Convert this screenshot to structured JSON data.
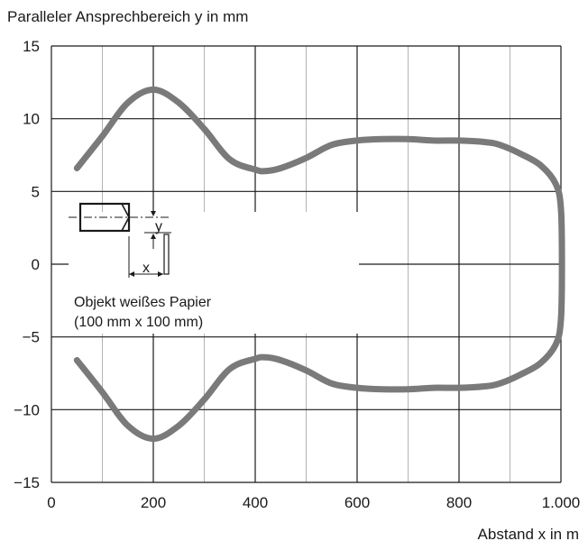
{
  "chart_data": {
    "type": "line",
    "title": "",
    "ylabel": "Paralleler Ansprechbereich y in mm",
    "xlabel": "Abstand x in m",
    "xlim": [
      0,
      1000
    ],
    "ylim": [
      -15,
      15
    ],
    "x_ticks": [
      0,
      200,
      400,
      600,
      800,
      1000
    ],
    "x_tick_labels": [
      "0",
      "200",
      "400",
      "600",
      "800",
      "1.000"
    ],
    "y_ticks": [
      15,
      10,
      5,
      0,
      -5,
      -10,
      -15
    ],
    "y_tick_labels": [
      "15",
      "10",
      "5",
      "0",
      "−5",
      "−10",
      "−15"
    ],
    "grid": true,
    "colors": {
      "curve": "#7a7a7a",
      "major_grid": "#1a1a1a",
      "minor_grid": "#b4b4b4"
    },
    "series": [
      {
        "x": [
          50,
          100,
          150,
          200,
          250,
          300,
          350,
          400,
          420,
          450,
          500,
          550,
          600,
          650,
          700,
          750,
          800,
          850,
          880,
          920,
          960,
          990,
          1000,
          1002,
          1000,
          990,
          960,
          920,
          880,
          850,
          800,
          750,
          700,
          650,
          600,
          550,
          500,
          450,
          420,
          400,
          350,
          300,
          250,
          200,
          150,
          100,
          50
        ],
        "y": [
          6.6,
          8.8,
          11.1,
          12.0,
          11.1,
          9.3,
          7.2,
          6.5,
          6.4,
          6.6,
          7.3,
          8.2,
          8.5,
          8.6,
          8.6,
          8.5,
          8.5,
          8.4,
          8.2,
          7.6,
          6.8,
          5.5,
          3.8,
          0,
          -3.8,
          -5.5,
          -6.8,
          -7.6,
          -8.2,
          -8.4,
          -8.5,
          -8.5,
          -8.6,
          -8.6,
          -8.5,
          -8.2,
          -7.3,
          -6.6,
          -6.4,
          -6.5,
          -7.2,
          -9.3,
          -11.1,
          -12.0,
          -11.1,
          -8.8,
          -6.6
        ]
      }
    ]
  },
  "inset": {
    "y_label": "y",
    "x_label": "x",
    "caption_line1": "Objekt weißes Papier",
    "caption_line2": "(100 mm x 100 mm)"
  }
}
